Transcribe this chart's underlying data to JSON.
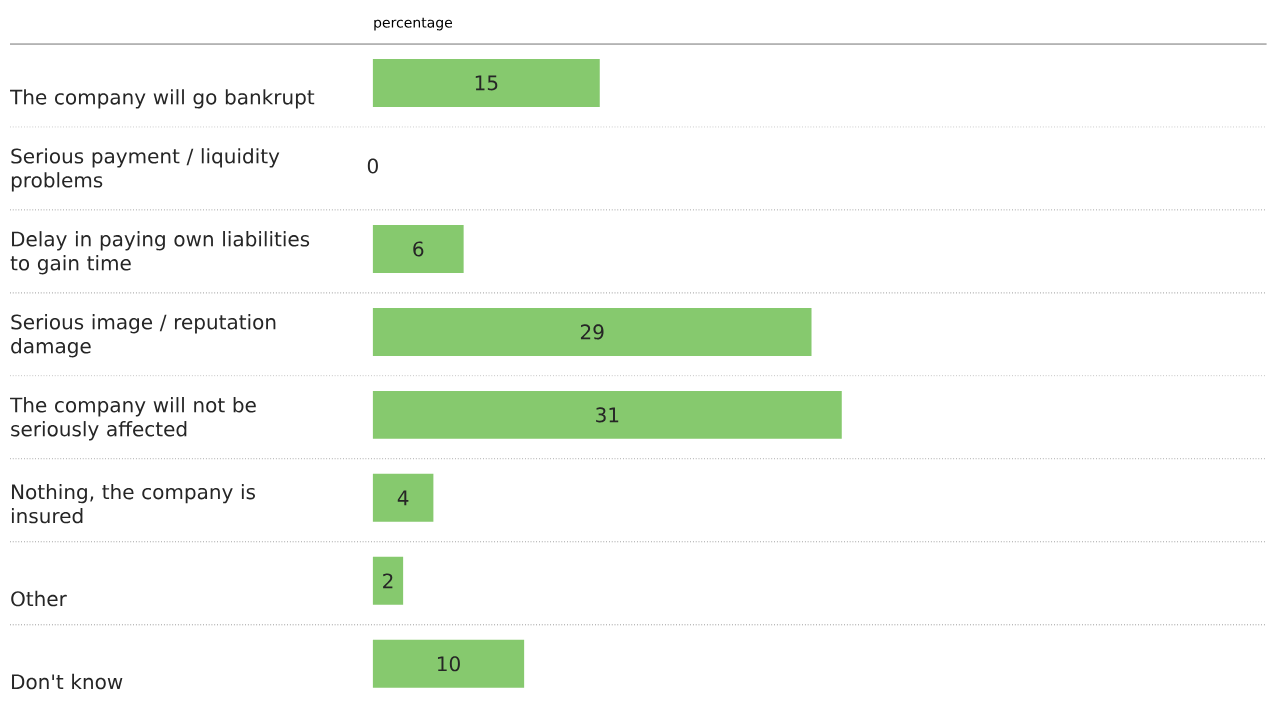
{
  "chart_data": {
    "type": "bar",
    "orientation": "horizontal",
    "xlabel": "percentage",
    "categories": [
      "The company will go bankrupt",
      "Serious payment / liquidity problems",
      "Delay in paying own liabilities to gain time",
      "Serious image / reputation damage",
      "The company will not be seriously affected",
      "Nothing, the company is insured",
      "Other",
      "Don't know"
    ],
    "values": [
      15,
      0,
      6,
      29,
      31,
      4,
      2,
      10
    ],
    "color": "#86c96e",
    "data_labels": true
  }
}
